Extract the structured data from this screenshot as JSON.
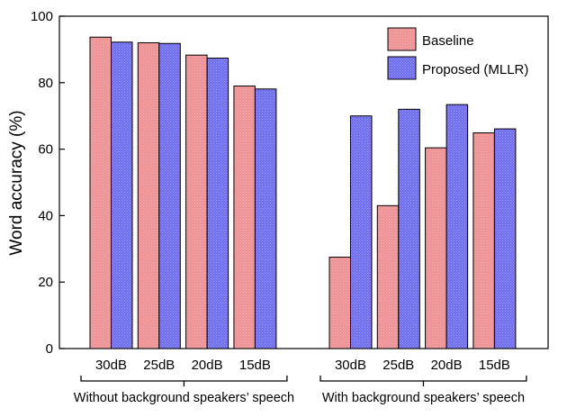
{
  "chart_data": {
    "type": "bar",
    "ylabel": "Word accuracy (%)",
    "ylim": [
      0,
      100
    ],
    "yticks": [
      0,
      20,
      40,
      60,
      80,
      100
    ],
    "legend": {
      "placement": "top-right"
    },
    "series": [
      {
        "name": "Baseline",
        "color": "#ee8f92",
        "pattern_color": "#f5b8ba"
      },
      {
        "name": "Proposed (MLLR)",
        "color": "#6b69ee",
        "pattern_color": "#a9a8f7"
      }
    ],
    "groups": [
      {
        "label": "Without background speakers’ speech",
        "categories": [
          "30dB",
          "25dB",
          "20dB",
          "15dB"
        ],
        "values": [
          [
            93.7,
            92.2
          ],
          [
            92.0,
            91.8
          ],
          [
            88.3,
            87.4
          ],
          [
            79.0,
            78.1
          ]
        ]
      },
      {
        "label": "With background speakers’ speech",
        "categories": [
          "30dB",
          "25dB",
          "20dB",
          "15dB"
        ],
        "values": [
          [
            27.5,
            70.0
          ],
          [
            43.0,
            72.0
          ],
          [
            60.4,
            73.4
          ],
          [
            64.9,
            66.1
          ]
        ]
      }
    ],
    "grid": false
  }
}
